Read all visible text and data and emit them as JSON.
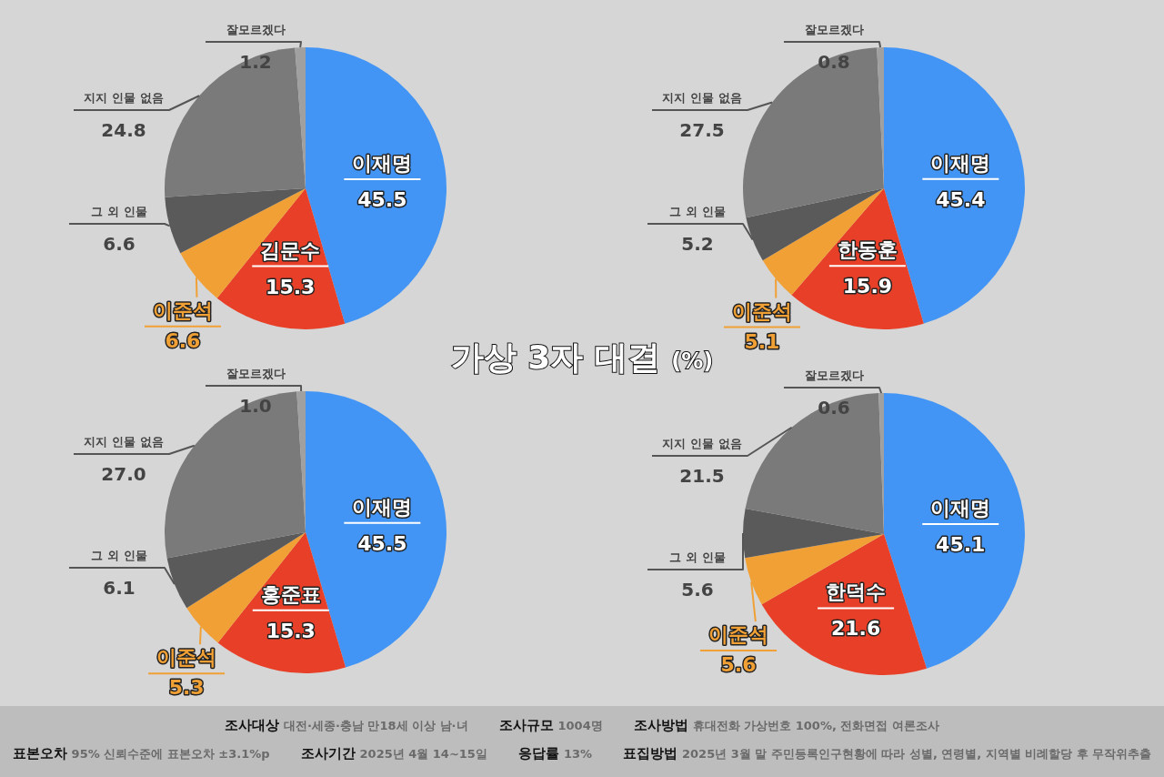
{
  "chart_data": [
    {
      "type": "pie",
      "title": "가상 3자 대결 (%)",
      "categories": [
        "이재명",
        "김문수",
        "이준석",
        "그 외 인물",
        "지지 인물 없음",
        "잘모르겠다"
      ],
      "values": [
        45.5,
        15.3,
        6.6,
        6.6,
        24.8,
        1.2
      ],
      "value_labels": [
        "45.5",
        "15.3",
        "6.6",
        "6.6",
        "24.8",
        "1.2"
      ],
      "colors": [
        "#4395f5",
        "#e84028",
        "#f0a035",
        "#5a5a5a",
        "#7a7a7a",
        "#a0a0a0"
      ]
    },
    {
      "type": "pie",
      "categories": [
        "이재명",
        "한동훈",
        "이준석",
        "그 외 인물",
        "지지 인물 없음",
        "잘모르겠다"
      ],
      "values": [
        45.4,
        15.9,
        5.1,
        5.2,
        27.5,
        0.8
      ],
      "value_labels": [
        "45.4",
        "15.9",
        "5.1",
        "5.2",
        "27.5",
        "0.8"
      ],
      "colors": [
        "#4395f5",
        "#e84028",
        "#f0a035",
        "#5a5a5a",
        "#7a7a7a",
        "#a0a0a0"
      ]
    },
    {
      "type": "pie",
      "categories": [
        "이재명",
        "홍준표",
        "이준석",
        "그 외 인물",
        "지지 인물 없음",
        "잘모르겠다"
      ],
      "values": [
        45.5,
        15.3,
        5.3,
        6.1,
        27.0,
        1.0
      ],
      "value_labels": [
        "45.5",
        "15.3",
        "5.3",
        "6.1",
        "27.0",
        "1.0"
      ],
      "colors": [
        "#4395f5",
        "#e84028",
        "#f0a035",
        "#5a5a5a",
        "#7a7a7a",
        "#a0a0a0"
      ]
    },
    {
      "type": "pie",
      "categories": [
        "이재명",
        "한덕수",
        "이준석",
        "그 외 인물",
        "지지 인물 없음",
        "잘모르겠다"
      ],
      "values": [
        45.1,
        21.6,
        5.6,
        5.6,
        21.5,
        0.6
      ],
      "value_labels": [
        "45.1",
        "21.6",
        "5.6",
        "5.6",
        "21.5",
        "0.6"
      ],
      "colors": [
        "#4395f5",
        "#e84028",
        "#f0a035",
        "#5a5a5a",
        "#7a7a7a",
        "#a0a0a0"
      ],
      "annotations": [
        "조사대상 대전·세종·충남 만18세 이상 남·녀",
        "조사규모 1004명",
        "조사방법 휴대전화 가상번호 100%, 전화면접 여론조사",
        "표본오차 95% 신뢰수준에 표본오차 ±3.1%p",
        "조사기간 2025년 4월 14~15일",
        "응답률 13%",
        "표집방법 2025년 3월 말 주민등록인구현황에 따라 성별, 연령별, 지역별 비례할당 후 무작위추출"
      ]
    }
  ]
}
